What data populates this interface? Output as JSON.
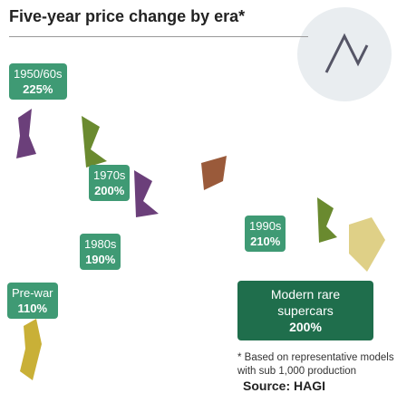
{
  "title": "Five-year price change by era*",
  "eras": [
    {
      "label": "1950/60s",
      "change": "225%"
    },
    {
      "label": "1970s",
      "change": "200%"
    },
    {
      "label": "1980s",
      "change": "190%"
    },
    {
      "label": "1990s",
      "change": "210%"
    },
    {
      "label": "Pre-war",
      "change": "110%"
    },
    {
      "label": "Modern rare supercars",
      "change": "200%"
    }
  ],
  "footnote": [
    "* Based on representative models",
    "with sub 1,000 production"
  ],
  "source": "Source: HAGI"
}
